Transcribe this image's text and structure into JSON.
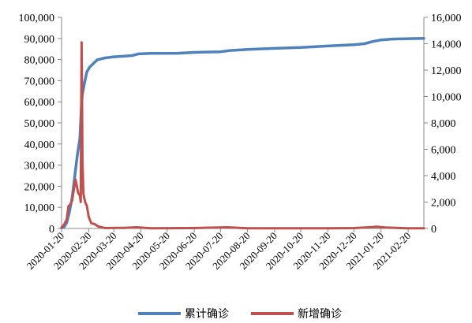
{
  "chart_data": {
    "type": "line",
    "title": "",
    "xlabel": "",
    "ylabel_left": "",
    "ylabel_right": "",
    "x_tick_labels": [
      "2020-01-20",
      "2020-02-20",
      "2020-03-20",
      "2020-04-20",
      "2020-05-20",
      "2020-06-20",
      "2020-07-20",
      "2020-08-20",
      "2020-09-20",
      "2020-10-20",
      "2020-11-20",
      "2020-12-20",
      "2021-01-20",
      "2021-02-20"
    ],
    "x_range": [
      "2020-01-20",
      "2021-03-10"
    ],
    "y_left": {
      "range": [
        0,
        100000
      ],
      "ticks": [
        0,
        10000,
        20000,
        30000,
        40000,
        50000,
        60000,
        70000,
        80000,
        90000,
        100000
      ],
      "tick_labels": [
        "0",
        "10,000",
        "20,000",
        "30,000",
        "40,000",
        "50,000",
        "60,000",
        "70,000",
        "80,000",
        "90,000",
        "100,000"
      ]
    },
    "y_right": {
      "range": [
        0,
        16000
      ],
      "ticks": [
        0,
        2000,
        4000,
        6000,
        8000,
        10000,
        12000,
        14000,
        16000
      ],
      "tick_labels": [
        "0",
        "2,000",
        "4,000",
        "6,000",
        "8,000",
        "10,000",
        "12,000",
        "14,000",
        "16,000"
      ]
    },
    "grid": false,
    "legend_position": "bottom",
    "series": [
      {
        "name": "累计确诊",
        "axis": "left",
        "color": "#4f81bd",
        "points": [
          [
            "2020-01-20",
            300
          ],
          [
            "2020-01-23",
            800
          ],
          [
            "2020-01-26",
            2800
          ],
          [
            "2020-01-29",
            7800
          ],
          [
            "2020-02-01",
            14400
          ],
          [
            "2020-02-04",
            24300
          ],
          [
            "2020-02-07",
            34500
          ],
          [
            "2020-02-10",
            42600
          ],
          [
            "2020-02-12",
            60000
          ],
          [
            "2020-02-13",
            63800
          ],
          [
            "2020-02-15",
            68500
          ],
          [
            "2020-02-18",
            74200
          ],
          [
            "2020-02-21",
            76300
          ],
          [
            "2020-02-25",
            78000
          ],
          [
            "2020-03-01",
            79900
          ],
          [
            "2020-03-10",
            80800
          ],
          [
            "2020-03-20",
            81300
          ],
          [
            "2020-04-01",
            81600
          ],
          [
            "2020-04-10",
            81900
          ],
          [
            "2020-04-17",
            82700
          ],
          [
            "2020-05-01",
            82900
          ],
          [
            "2020-06-01",
            83000
          ],
          [
            "2020-06-20",
            83400
          ],
          [
            "2020-07-20",
            83700
          ],
          [
            "2020-07-31",
            84300
          ],
          [
            "2020-08-20",
            84800
          ],
          [
            "2020-09-20",
            85300
          ],
          [
            "2020-10-20",
            85700
          ],
          [
            "2020-11-20",
            86400
          ],
          [
            "2020-12-20",
            87000
          ],
          [
            "2021-01-01",
            87500
          ],
          [
            "2021-01-10",
            88500
          ],
          [
            "2021-01-20",
            89300
          ],
          [
            "2021-02-01",
            89700
          ],
          [
            "2021-02-20",
            89900
          ],
          [
            "2021-03-10",
            90000
          ]
        ]
      },
      {
        "name": "新增确诊",
        "axis": "right",
        "color": "#c0504d",
        "points": [
          [
            "2020-01-20",
            80
          ],
          [
            "2020-01-23",
            300
          ],
          [
            "2020-01-26",
            700
          ],
          [
            "2020-01-28",
            1700
          ],
          [
            "2020-01-30",
            1800
          ],
          [
            "2020-02-01",
            2100
          ],
          [
            "2020-02-03",
            2900
          ],
          [
            "2020-02-05",
            3700
          ],
          [
            "2020-02-06",
            3400
          ],
          [
            "2020-02-08",
            2700
          ],
          [
            "2020-02-10",
            2500
          ],
          [
            "2020-02-11",
            2000
          ],
          [
            "2020-02-12",
            14100
          ],
          [
            "2020-02-13",
            5000
          ],
          [
            "2020-02-14",
            2600
          ],
          [
            "2020-02-16",
            2000
          ],
          [
            "2020-02-18",
            1700
          ],
          [
            "2020-02-20",
            900
          ],
          [
            "2020-02-23",
            400
          ],
          [
            "2020-02-27",
            330
          ],
          [
            "2020-03-02",
            150
          ],
          [
            "2020-03-10",
            30
          ],
          [
            "2020-03-20",
            40
          ],
          [
            "2020-04-01",
            50
          ],
          [
            "2020-04-15",
            90
          ],
          [
            "2020-05-01",
            10
          ],
          [
            "2020-06-15",
            30
          ],
          [
            "2020-07-28",
            90
          ],
          [
            "2020-08-20",
            20
          ],
          [
            "2020-10-01",
            20
          ],
          [
            "2020-11-20",
            20
          ],
          [
            "2020-12-20",
            30
          ],
          [
            "2021-01-10",
            100
          ],
          [
            "2021-01-15",
            140
          ],
          [
            "2021-01-25",
            70
          ],
          [
            "2021-02-20",
            10
          ],
          [
            "2021-03-10",
            10
          ]
        ]
      }
    ]
  },
  "legend": {
    "items": [
      {
        "label": "累计确诊",
        "color": "#4f81bd"
      },
      {
        "label": "新增确诊",
        "color": "#c0504d"
      }
    ]
  }
}
